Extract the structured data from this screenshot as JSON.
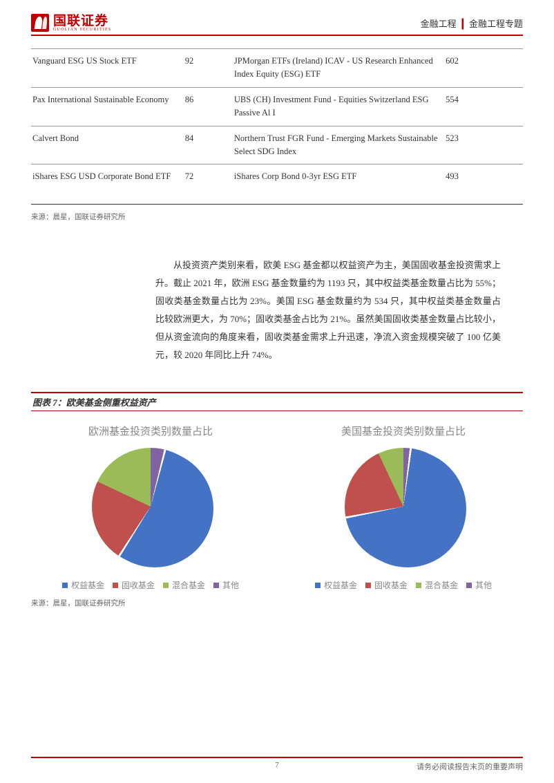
{
  "header": {
    "logo_cn": "国联证券",
    "logo_en": "GUOLIAN SECURITIES",
    "breadcrumb_left": "金融工程",
    "breadcrumb_right": "金融工程专题"
  },
  "table": {
    "rows": [
      {
        "c1": "Vanguard ESG US Stock ETF",
        "c2": "92",
        "c3": "JPMorgan ETFs (Ireland) ICAV - US Research Enhanced Index Equity (ESG) ETF",
        "c4": "602"
      },
      {
        "c1": "Pax International Sustainable Economy",
        "c2": "86",
        "c3": "UBS (CH) Investment Fund - Equities Switzerland ESG Passive Al I",
        "c4": "554"
      },
      {
        "c1": "Calvert Bond",
        "c2": "84",
        "c3": "Northern Trust FGR Fund - Emerging Markets Sustainable Select SDG Index",
        "c4": "523"
      },
      {
        "c1": "iShares ESG USD Corporate Bond ETF",
        "c2": "72",
        "c3": "iShares Corp Bond 0-3yr ESG ETF",
        "c4": "493"
      }
    ]
  },
  "source_text": "来源：晨星，国联证券研究所",
  "body_paragraph": "从投资资产类别来看，欧美 ESG 基金都以权益资产为主，美国固收基金投资需求上升。截止 2021 年，欧洲 ESG 基金数量约为 1193 只，其中权益类基金数量占比为 55%；固收类基金数量占比为 23%。美国 ESG 基金数量约为 534 只，其中权益类基金数量占比较欧洲更大，为 70%；固收类基金占比为 21%。虽然美国固收类基金数量占比较小，但从资金流向的角度来看，固收类基金需求上升迅速，净流入资金规模突破了 100 亿美元，较 2020 年同比上升 74%。",
  "figure": {
    "caption": "图表 7：欧美基金侧重权益资产",
    "chart_eu": {
      "title": "欧洲基金投资类别数量占比",
      "type": "pie",
      "labels": [
        "权益基金",
        "固收基金",
        "混合基金",
        "其他"
      ],
      "values": [
        55,
        23,
        18,
        4
      ],
      "colors": [
        "#4472c4",
        "#c0504d",
        "#9bbb59",
        "#8064a2"
      ],
      "exploded_index": 0,
      "background_color": "#ffffff"
    },
    "chart_us": {
      "title": "美国基金投资类别数量占比",
      "type": "pie",
      "labels": [
        "权益基金",
        "固收基金",
        "混合基金",
        "其他"
      ],
      "values": [
        70,
        21,
        7,
        2
      ],
      "colors": [
        "#4472c4",
        "#c0504d",
        "#9bbb59",
        "#8064a2"
      ],
      "exploded_index": 0,
      "background_color": "#ffffff"
    },
    "legend_labels": [
      "权益基金",
      "固收基金",
      "混合基金",
      "其他"
    ],
    "legend_colors": [
      "#4472c4",
      "#c0504d",
      "#9bbb59",
      "#8064a2"
    ]
  },
  "footer": {
    "page": "7",
    "disclaimer": "请务必阅读报告末页的重要声明"
  }
}
